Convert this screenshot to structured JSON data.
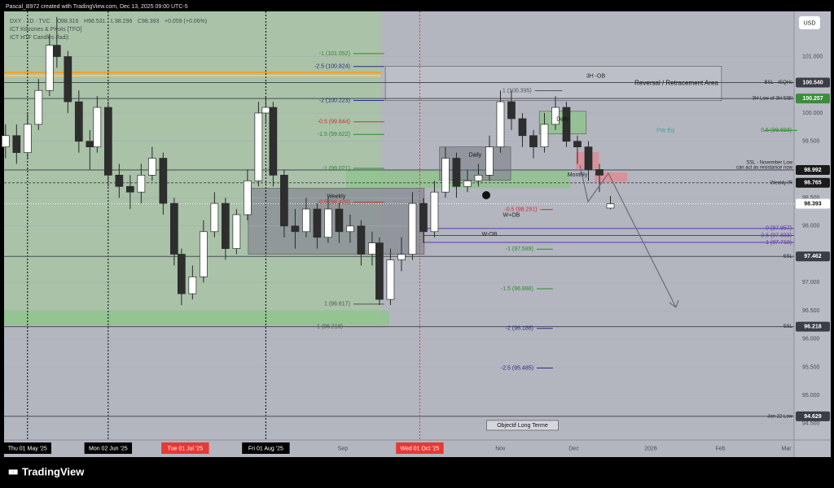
{
  "header": {
    "credit": "Pascal_B972 created with TradingView.com, Dec 13, 2025 09:00 UTC-5",
    "symbol": "DXY · 1D · TVC",
    "ohlc_labels": [
      "O",
      "H",
      "L",
      "C"
    ],
    "change": "+0.059 (+0.06%)",
    "indicators": [
      "ICT Killzones & Pivots [TFO]",
      "ICT HTF Candles (fadi)"
    ]
  },
  "toolbar": {
    "currency": "USD"
  },
  "footer": {
    "logo": "TradingView"
  },
  "chart_data": {
    "type": "candlestick",
    "up_color": "#ffffff",
    "down_color": "#2e2e2e",
    "xlim": [
      -6.4,
      209.1
    ],
    "ylim": [
      94.21,
      101.8
    ],
    "x": [
      -6,
      -3,
      0,
      3,
      6,
      8,
      11,
      14,
      17,
      19,
      22,
      25,
      28,
      31,
      34,
      37,
      40,
      42,
      45,
      48,
      51,
      54,
      57,
      60,
      63,
      65,
      67,
      70,
      73,
      76,
      79,
      82,
      85,
      88,
      91,
      94,
      96,
      99,
      102,
      105,
      108,
      111,
      114,
      117,
      120,
      123,
      126,
      129,
      132,
      135,
      138,
      141,
      144,
      147,
      150,
      153,
      156,
      159
    ],
    "open": [
      99.4,
      99.6,
      99.3,
      99.8,
      100.4,
      101.2,
      101.0,
      100.2,
      99.5,
      99.4,
      100.1,
      98.9,
      98.7,
      98.6,
      98.9,
      99.2,
      98.4,
      97.5,
      96.8,
      97.1,
      97.9,
      98.4,
      97.6,
      98.2,
      98.8,
      100.0,
      100.1,
      98.9,
      98.0,
      97.9,
      98.3,
      97.8,
      98.3,
      97.9,
      98.0,
      97.5,
      97.7,
      96.7,
      97.4,
      97.5,
      98.4,
      97.9,
      98.6,
      99.2,
      98.7,
      98.8,
      98.9,
      99.4,
      100.2,
      99.9,
      99.6,
      99.4,
      99.8,
      100.1,
      99.5,
      99.4,
      99.0,
      98.316
    ],
    "high": [
      99.8,
      99.8,
      100.0,
      100.6,
      101.4,
      101.7,
      101.1,
      100.4,
      99.7,
      100.3,
      100.2,
      99.1,
      98.9,
      99.1,
      99.4,
      99.3,
      98.5,
      97.6,
      97.3,
      98.1,
      98.6,
      98.5,
      98.3,
      99.0,
      100.2,
      100.3,
      100.2,
      99.0,
      98.3,
      98.5,
      98.4,
      98.5,
      98.4,
      98.2,
      98.1,
      97.9,
      97.8,
      97.6,
      97.8,
      98.6,
      98.5,
      98.8,
      99.4,
      99.3,
      99.0,
      99.1,
      99.6,
      100.4,
      100.4,
      100.0,
      99.7,
      100.0,
      100.3,
      100.2,
      99.6,
      99.5,
      99.1,
      98.531
    ],
    "low": [
      99.2,
      99.1,
      99.2,
      99.7,
      100.3,
      100.8,
      100.0,
      99.3,
      99.0,
      99.3,
      98.7,
      98.5,
      98.3,
      98.4,
      98.8,
      98.2,
      97.3,
      96.6,
      96.7,
      97.0,
      97.8,
      97.4,
      97.5,
      98.1,
      98.7,
      99.8,
      98.7,
      97.8,
      97.6,
      97.8,
      97.6,
      97.7,
      97.7,
      97.7,
      97.3,
      97.3,
      96.6,
      96.6,
      97.2,
      97.4,
      97.7,
      97.8,
      98.5,
      98.5,
      98.6,
      98.7,
      98.8,
      99.3,
      99.7,
      99.4,
      99.2,
      99.3,
      99.7,
      99.4,
      99.1,
      98.8,
      98.6,
      98.296
    ],
    "close": [
      99.6,
      99.3,
      99.8,
      100.4,
      101.2,
      101.0,
      100.2,
      99.5,
      99.4,
      100.1,
      98.9,
      98.7,
      98.6,
      98.9,
      99.2,
      98.4,
      97.5,
      96.8,
      97.1,
      97.9,
      98.4,
      97.6,
      98.2,
      98.8,
      100.0,
      100.1,
      98.9,
      98.0,
      97.9,
      98.3,
      97.8,
      98.3,
      97.9,
      98.0,
      97.5,
      97.7,
      96.7,
      97.4,
      97.5,
      98.4,
      97.9,
      98.6,
      99.2,
      98.7,
      98.8,
      98.9,
      99.4,
      100.2,
      99.9,
      99.6,
      99.4,
      99.8,
      100.1,
      99.5,
      99.4,
      99.0,
      98.9,
      98.393
    ],
    "yticks": [
      {
        "value": 94.5,
        "label": "94.500"
      },
      {
        "value": 95,
        "label": "95.000"
      },
      {
        "value": 95.5,
        "label": "95.500"
      },
      {
        "value": 96,
        "label": "96.000"
      },
      {
        "value": 96.5,
        "label": "96.500"
      },
      {
        "value": 97,
        "label": "97.000"
      },
      {
        "value": 98,
        "label": "98.000"
      },
      {
        "value": 98.5,
        "label": "98.500"
      },
      {
        "value": 99,
        "label": "99.000"
      },
      {
        "value": 99.5,
        "label": "99.500"
      },
      {
        "value": 100,
        "label": "100.000"
      },
      {
        "value": 101,
        "label": "101.000"
      }
    ],
    "xticks": [
      {
        "value": 0,
        "label": "Thu 01 May '25",
        "color": "#000000",
        "vline": true
      },
      {
        "value": 22,
        "label": "Mon 02 Jun '25",
        "color": "#000000",
        "vline": true
      },
      {
        "value": 43,
        "label": "Tue 01 Jul '25",
        "color": "#e53935",
        "vline": false
      },
      {
        "value": 65,
        "label": "Fri 01 Aug '25",
        "color": "#000000",
        "vline": true
      },
      {
        "value": 86,
        "label": "Sep"
      },
      {
        "value": 107,
        "label": "Wed 01 Oct '25",
        "color": "#e53935",
        "vline": true
      },
      {
        "value": 129,
        "label": "Nov"
      },
      {
        "value": 149,
        "label": "Dec"
      },
      {
        "value": 170,
        "label": "2026"
      },
      {
        "value": 189,
        "label": "Feb"
      },
      {
        "value": 207,
        "label": "Mar"
      }
    ],
    "zones": [
      {
        "from": -6.4,
        "to": 96.4,
        "top": 101.8,
        "bottom": 96.3,
        "color": "#a6c6a2"
      },
      {
        "from": -6.4,
        "to": 98.7,
        "top": 96.5,
        "bottom": 96.24,
        "color": "#8fc48b"
      },
      {
        "from": 86.9,
        "to": 148,
        "top": 98.98,
        "bottom": 98.67,
        "color": "#8fc48b"
      },
      {
        "from": 60.2,
        "to": 108.2,
        "top": 98.666,
        "bottom": 97.5,
        "color": "#8a8d95",
        "label": "Weekly"
      },
      {
        "from": 112.4,
        "to": 131.8,
        "top": 99.4,
        "bottom": 98.81,
        "color": "#8a8d95",
        "label": "Daily"
      },
      {
        "from": 97.6,
        "to": 189.3,
        "top": 100.83,
        "bottom": 100.22,
        "color": "#bfc2ca",
        "label": "Reversal / Retracement Area"
      },
      {
        "from": 139.6,
        "to": 152.4,
        "top": 100.03,
        "bottom": 99.63,
        "color": "#8fc48b",
        "label": "Daily"
      },
      {
        "from": 149.6,
        "to": 155.8,
        "top": 99.31,
        "bottom": 99.01,
        "color": "#e08a93"
      },
      {
        "from": 154.7,
        "to": 163.6,
        "top": 98.95,
        "bottom": 98.78,
        "color": "#e08a93"
      }
    ],
    "segments": [
      {
        "from": -6.4,
        "to": 96.4,
        "price": 100.72,
        "color": "#f0a030"
      },
      {
        "from": -6.4,
        "to": 96.4,
        "price": 100.66,
        "color": "#f7c46a"
      }
    ],
    "levels": [
      {
        "value": 100.54,
        "label": "100.540",
        "name": "BSL - rEQHs",
        "color": "#3a3d45"
      },
      {
        "value": 100.257,
        "label": "100.257",
        "name": "3H Low of 3H SIBI",
        "color": "#3c8c3c"
      },
      {
        "value": 98.992,
        "label": "98.992",
        "name": "SSL - November Low",
        "note": "can act as resistance now",
        "color": "#1a1a1a"
      },
      {
        "value": 98.765,
        "label": "98.765",
        "name": "Weekly IR",
        "color": "#1a1a1a"
      },
      {
        "value": 98.393,
        "label": "98.393",
        "color": "#ffffff"
      },
      {
        "value": 97.462,
        "label": "97.462",
        "name": "SSL",
        "color": "#3a3d45"
      },
      {
        "value": 96.218,
        "label": "96.218",
        "name": "SSL",
        "color": "#3a3d45"
      },
      {
        "value": 94.629,
        "label": "94.629",
        "name": "Jan 22 Low",
        "color": "#3a3d45"
      }
    ],
    "fibs": [
      {
        "text": "-1 (101.052)",
        "price": 101.052,
        "from": 88,
        "to": 96.4,
        "color": "#2e8b2e",
        "anchor": "end"
      },
      {
        "text": "-2.5 (100.824)",
        "price": 100.824,
        "from": 88,
        "to": 96.4,
        "color": "#2a2a8a",
        "anchor": "end"
      },
      {
        "text": "-2 (100.223)",
        "price": 100.223,
        "from": 88,
        "to": 96.4,
        "color": "#2a2a8a",
        "anchor": "end"
      },
      {
        "text": "-0.5 (99.844)",
        "price": 99.844,
        "from": 88,
        "to": 96.4,
        "color": "#d32f2f",
        "anchor": "end"
      },
      {
        "text": "-1.5 (99.622)",
        "price": 99.622,
        "from": 88,
        "to": 96.4,
        "color": "#2e8b2e",
        "anchor": "end"
      },
      {
        "text": "-1 (99.021)",
        "price": 99.021,
        "from": 88,
        "to": 96.4,
        "color": "#2e8b2e",
        "anchor": "end"
      },
      {
        "text": "-0.5 (98.420)",
        "price": 98.42,
        "from": 88,
        "to": 96.4,
        "color": "#d32f2f",
        "anchor": "end"
      },
      {
        "text": "1 (96.617)",
        "price": 96.617,
        "from": 88,
        "to": 96.4,
        "color": "#555555",
        "anchor": "end"
      },
      {
        "text": "1 (96.218)",
        "price": 96.218,
        "from": 86,
        "to": 96.4,
        "color": "#555555",
        "anchor": "end"
      },
      {
        "text": "1 (100.395)",
        "price": 100.395,
        "from": 137.5,
        "to": 145,
        "color": "#555555",
        "anchor": "end"
      },
      {
        "text": "0.5 (99.693)",
        "price": 99.693,
        "from": 200,
        "to": 209.1,
        "color": "#2e8b2e",
        "anchor": "start"
      },
      {
        "text": "-0.5 (98.291)",
        "price": 98.291,
        "from": 139,
        "to": 142.4,
        "color": "#d32f2f",
        "anchor": "end"
      },
      {
        "text": "0 (97.957)",
        "price": 97.957,
        "from": 108,
        "to": 209.1,
        "color": "#5e35b1",
        "anchor": "start"
      },
      {
        "text": "0.5 (97.833)",
        "price": 97.833,
        "from": 108,
        "to": 209.1,
        "color": "#5e35b1",
        "anchor": "start"
      },
      {
        "text": "1 (97.710)",
        "price": 97.71,
        "from": 108,
        "to": 209.1,
        "color": "#5e35b1",
        "anchor": "start"
      },
      {
        "text": "-1 (97.589)",
        "price": 97.589,
        "from": 138,
        "to": 142.4,
        "color": "#2e8b2e",
        "anchor": "end"
      },
      {
        "text": "-1.5 (96.888)",
        "price": 96.888,
        "from": 138,
        "to": 142.4,
        "color": "#2e8b2e",
        "anchor": "end"
      },
      {
        "text": "-2 (96.186)",
        "price": 96.186,
        "from": 138,
        "to": 142.4,
        "color": "#2a2a8a",
        "anchor": "end"
      },
      {
        "text": "-2.5 (95.485)",
        "price": 95.485,
        "from": 138,
        "to": 142.4,
        "color": "#2a2a8a",
        "anchor": "end"
      }
    ],
    "annotations": [
      {
        "text": "PW Eq",
        "x": 174,
        "price": 99.69,
        "color": "#3aa0a0"
      },
      {
        "text": "W+OB",
        "x": 132,
        "price": 98.19,
        "color": "#222222"
      },
      {
        "text": "W-OB",
        "x": 126,
        "price": 97.85,
        "color": "#222222"
      },
      {
        "text": "3H -OB",
        "x": 155,
        "price": 100.65,
        "color": "#222222"
      },
      {
        "text": "Monthly",
        "x": 150,
        "price": 98.9,
        "color": "#222222"
      },
      {
        "text": "Objectif Long Terme",
        "x": 135,
        "price": 94.47,
        "color": "#111111"
      }
    ]
  }
}
